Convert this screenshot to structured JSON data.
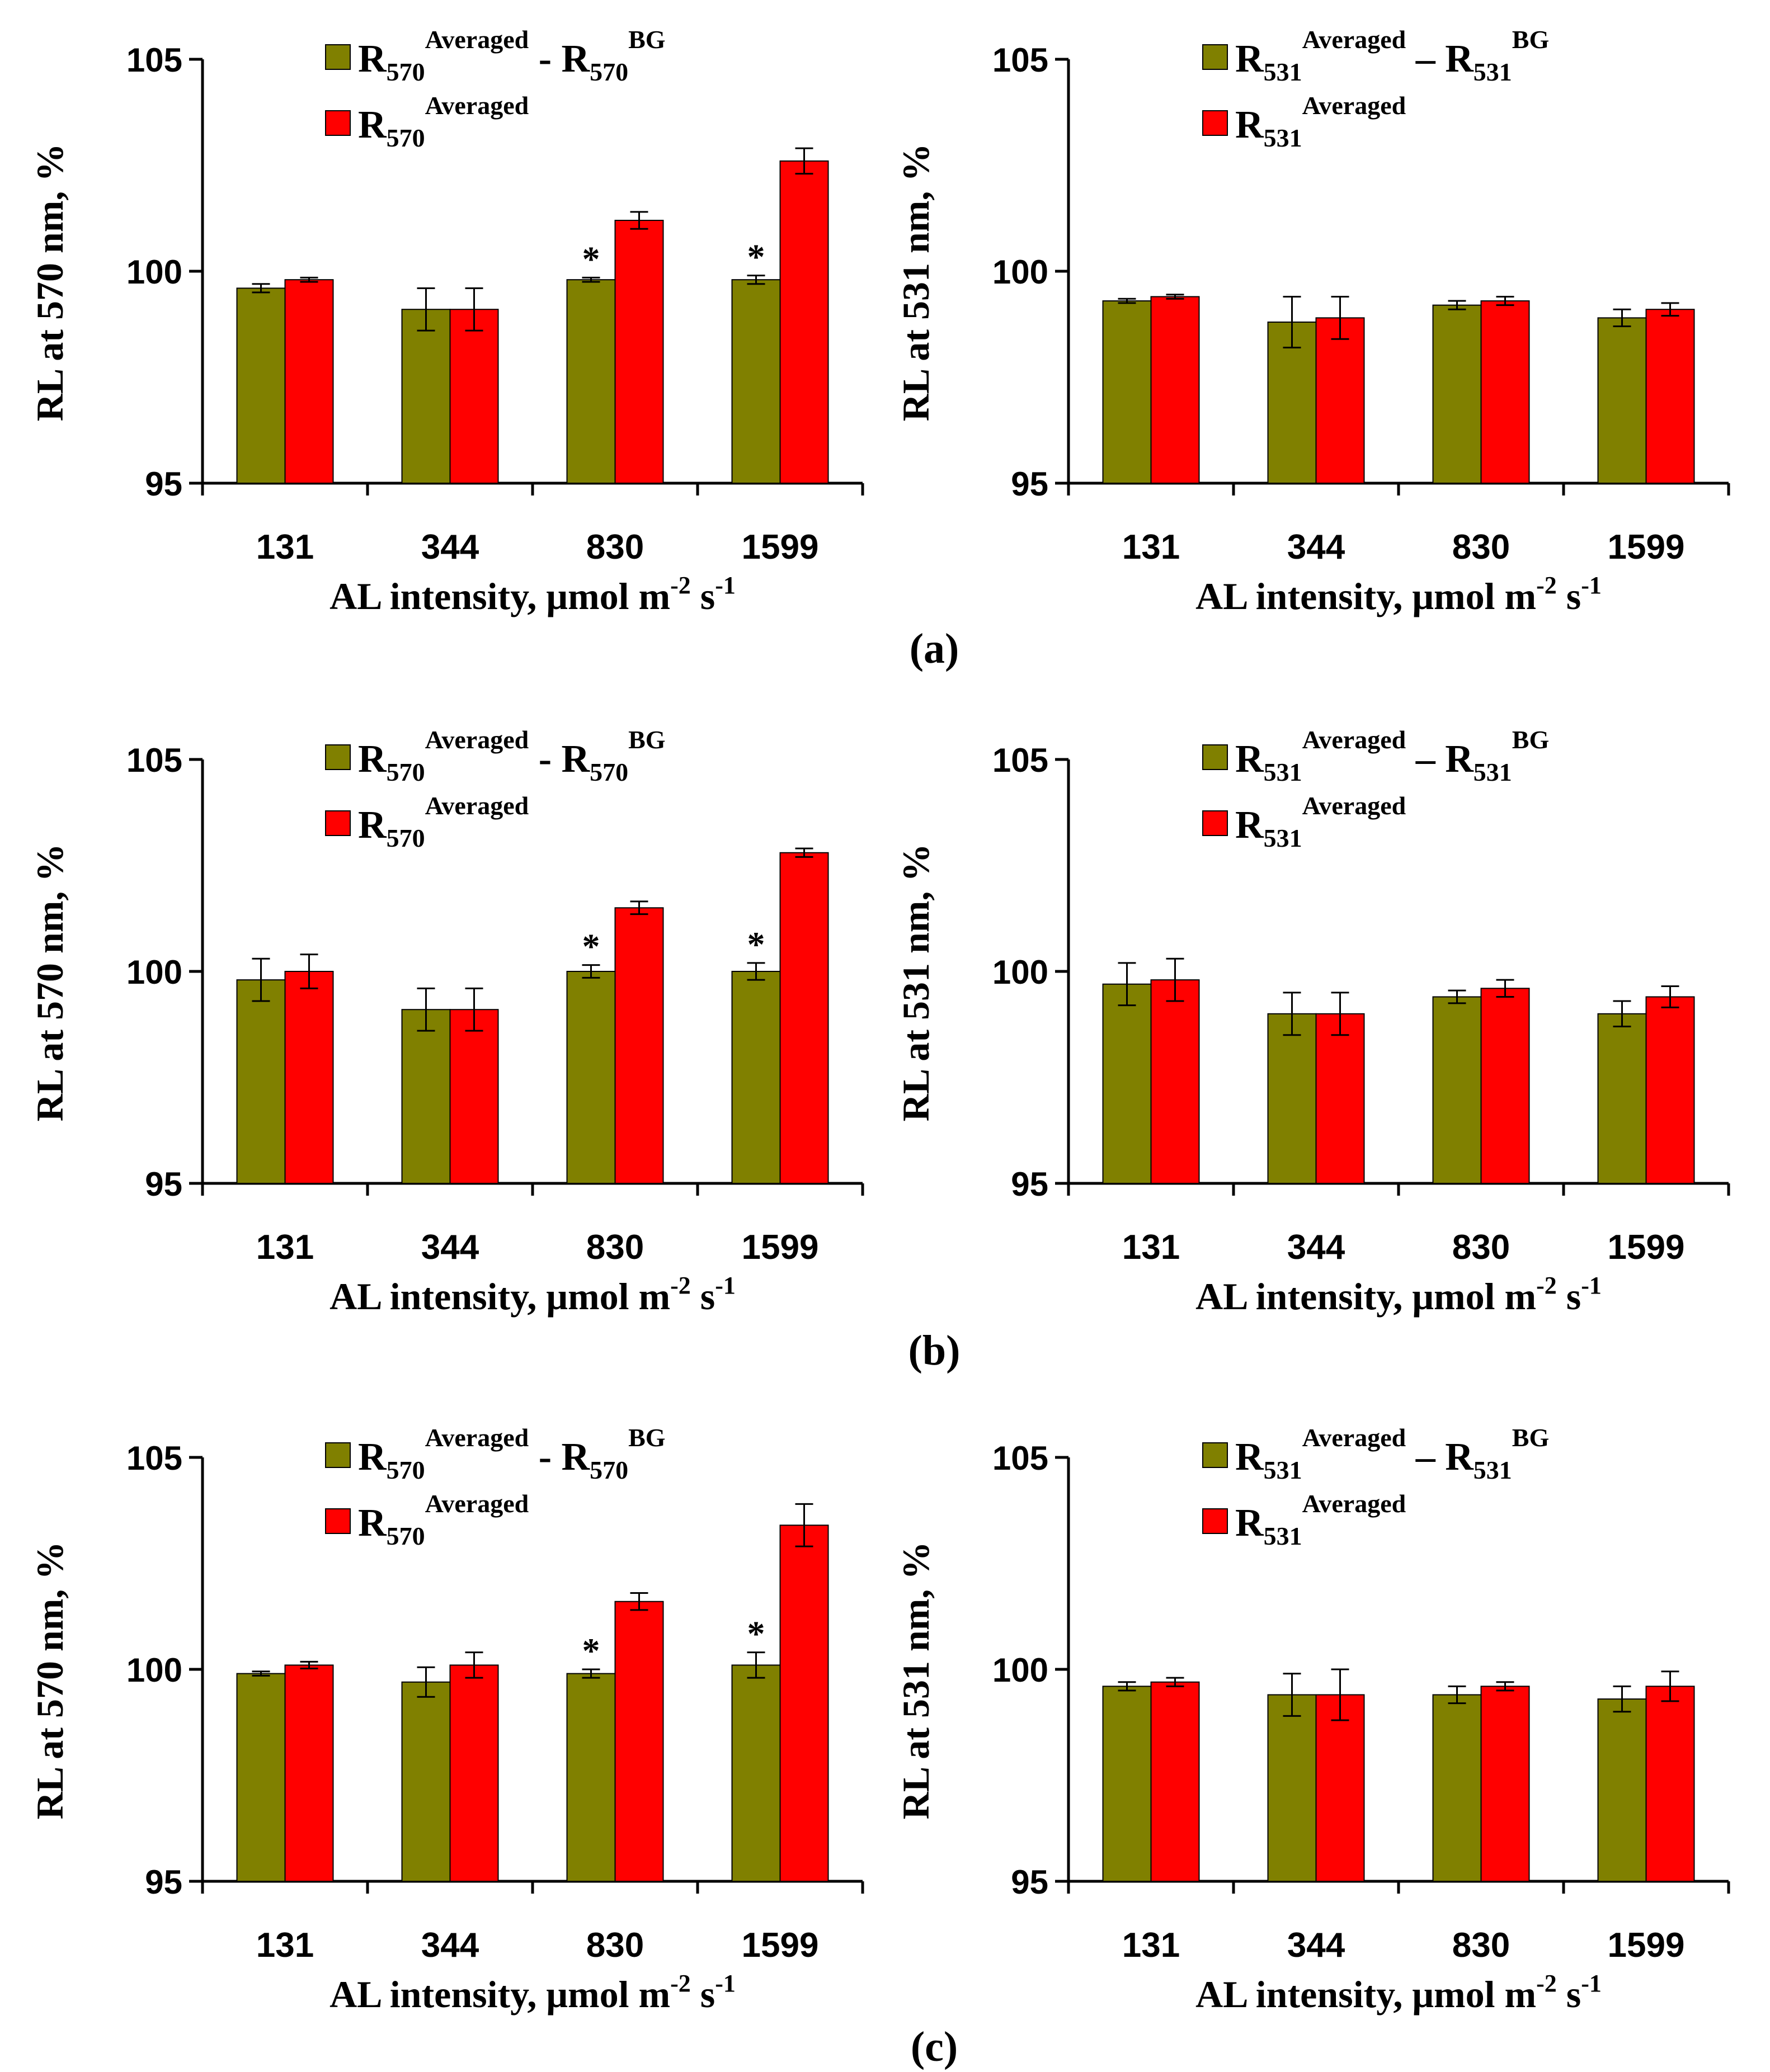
{
  "colors": {
    "olive": "#808000",
    "red": "#ff0000",
    "axis": "#000000"
  },
  "legend_glyphs": {
    "subscript_570": "570",
    "subscript_531": "531",
    "sup_avg": "Averaged",
    "sup_bg": "BG",
    "base": "R",
    "dash": "-",
    "endash": "–"
  },
  "panel_labels": [
    "(a)",
    "(b)",
    "(c)"
  ],
  "significance_marker": "*",
  "chart_data": [
    {
      "type": "bar",
      "panel": "a",
      "wavelength": "570",
      "ylabel": "RL at 570 nm, %",
      "xlabel_main": "AL intensity, μmol m",
      "xlabel_sup1": "-2",
      "xlabel_mid": " s",
      "xlabel_sup2": "-1",
      "ylim": [
        95,
        105
      ],
      "yticks": [
        "95",
        "100",
        "105"
      ],
      "categories": [
        "131",
        "344",
        "830",
        "1599"
      ],
      "legend_dash": "-",
      "series": [
        {
          "name": "R570 Averaged - R570 BG",
          "color": "olive",
          "values": [
            99.6,
            99.1,
            99.8,
            99.8
          ],
          "errors": [
            0.1,
            0.5,
            0.05,
            0.1
          ]
        },
        {
          "name": "R570 Averaged",
          "color": "red",
          "values": [
            99.8,
            99.1,
            101.2,
            102.6
          ],
          "errors": [
            0.05,
            0.5,
            0.2,
            0.3
          ]
        }
      ],
      "significant": [
        false,
        false,
        true,
        true
      ]
    },
    {
      "type": "bar",
      "panel": "a",
      "wavelength": "531",
      "ylabel": "RL at 531 nm, %",
      "xlabel_main": "AL intensity, μmol m",
      "xlabel_sup1": "-2",
      "xlabel_mid": " s",
      "xlabel_sup2": "-1",
      "ylim": [
        95,
        105
      ],
      "yticks": [
        "95",
        "100",
        "105"
      ],
      "categories": [
        "131",
        "344",
        "830",
        "1599"
      ],
      "legend_dash": "–",
      "series": [
        {
          "name": "R531 Averaged – R531 BG",
          "color": "olive",
          "values": [
            99.3,
            98.8,
            99.2,
            98.9
          ],
          "errors": [
            0.05,
            0.6,
            0.1,
            0.2
          ]
        },
        {
          "name": "R531 Averaged",
          "color": "red",
          "values": [
            99.4,
            98.9,
            99.3,
            99.1
          ],
          "errors": [
            0.05,
            0.5,
            0.1,
            0.15
          ]
        }
      ],
      "significant": [
        false,
        false,
        false,
        false
      ]
    },
    {
      "type": "bar",
      "panel": "b",
      "wavelength": "570",
      "ylabel": "RL at 570 nm, %",
      "xlabel_main": "AL intensity, μmol m",
      "xlabel_sup1": "-2",
      "xlabel_mid": " s",
      "xlabel_sup2": "-1",
      "ylim": [
        95,
        105
      ],
      "yticks": [
        "95",
        "100",
        "105"
      ],
      "categories": [
        "131",
        "344",
        "830",
        "1599"
      ],
      "legend_dash": "-",
      "series": [
        {
          "name": "R570 Averaged - R570 BG",
          "color": "olive",
          "values": [
            99.8,
            99.1,
            100.0,
            100.0
          ],
          "errors": [
            0.5,
            0.5,
            0.15,
            0.2
          ]
        },
        {
          "name": "R570 Averaged",
          "color": "red",
          "values": [
            100.0,
            99.1,
            101.5,
            102.8
          ],
          "errors": [
            0.4,
            0.5,
            0.15,
            0.1
          ]
        }
      ],
      "significant": [
        false,
        false,
        true,
        true
      ]
    },
    {
      "type": "bar",
      "panel": "b",
      "wavelength": "531",
      "ylabel": "RL at 531 nm, %",
      "xlabel_main": "AL intensity, μmol m",
      "xlabel_sup1": "-2",
      "xlabel_mid": " s",
      "xlabel_sup2": "-1",
      "ylim": [
        95,
        105
      ],
      "yticks": [
        "95",
        "100",
        "105"
      ],
      "categories": [
        "131",
        "344",
        "830",
        "1599"
      ],
      "legend_dash": "–",
      "series": [
        {
          "name": "R531 Averaged – R531 BG",
          "color": "olive",
          "values": [
            99.7,
            99.0,
            99.4,
            99.0
          ],
          "errors": [
            0.5,
            0.5,
            0.15,
            0.3
          ]
        },
        {
          "name": "R531 Averaged",
          "color": "red",
          "values": [
            99.8,
            99.0,
            99.6,
            99.4
          ],
          "errors": [
            0.5,
            0.5,
            0.2,
            0.25
          ]
        }
      ],
      "significant": [
        false,
        false,
        false,
        false
      ]
    },
    {
      "type": "bar",
      "panel": "c",
      "wavelength": "570",
      "ylabel": "RL at 570 nm, %",
      "xlabel_main": "AL intensity, μmol m",
      "xlabel_sup1": "-2",
      "xlabel_mid": " s",
      "xlabel_sup2": "-1",
      "ylim": [
        95,
        105
      ],
      "yticks": [
        "95",
        "100",
        "105"
      ],
      "categories": [
        "131",
        "344",
        "830",
        "1599"
      ],
      "legend_dash": "-",
      "series": [
        {
          "name": "R570 Averaged - R570 BG",
          "color": "olive",
          "values": [
            99.9,
            99.7,
            99.9,
            100.1
          ],
          "errors": [
            0.05,
            0.35,
            0.1,
            0.3
          ]
        },
        {
          "name": "R570 Averaged",
          "color": "red",
          "values": [
            100.1,
            100.1,
            101.6,
            103.4
          ],
          "errors": [
            0.08,
            0.3,
            0.2,
            0.5
          ]
        }
      ],
      "significant": [
        false,
        false,
        true,
        true
      ]
    },
    {
      "type": "bar",
      "panel": "c",
      "wavelength": "531",
      "ylabel": "RL at 531 nm, %",
      "xlabel_main": "AL intensity, μmol m",
      "xlabel_sup1": "-2",
      "xlabel_mid": " s",
      "xlabel_sup2": "-1",
      "ylim": [
        95,
        105
      ],
      "yticks": [
        "95",
        "100",
        "105"
      ],
      "categories": [
        "131",
        "344",
        "830",
        "1599"
      ],
      "legend_dash": "–",
      "series": [
        {
          "name": "R531 Averaged – R531 BG",
          "color": "olive",
          "values": [
            99.6,
            99.4,
            99.4,
            99.3
          ],
          "errors": [
            0.1,
            0.5,
            0.2,
            0.3
          ]
        },
        {
          "name": "R531 Averaged",
          "color": "red",
          "values": [
            99.7,
            99.4,
            99.6,
            99.6
          ],
          "errors": [
            0.1,
            0.6,
            0.1,
            0.35
          ]
        }
      ],
      "significant": [
        false,
        false,
        false,
        false
      ]
    }
  ]
}
